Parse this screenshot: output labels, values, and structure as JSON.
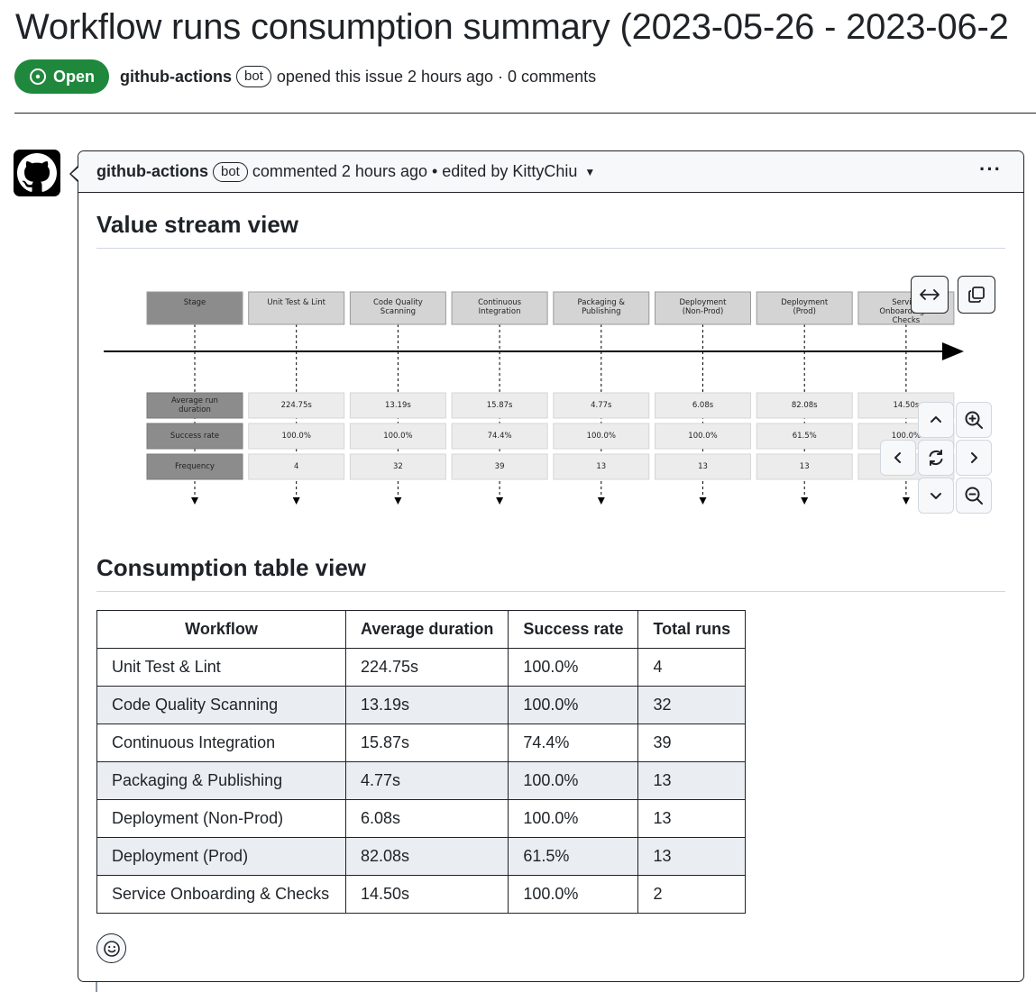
{
  "issue": {
    "title": "Workflow runs consumption summary (2023-05-26 - 2023-06-2",
    "state": "Open",
    "author": "github-actions",
    "bot_label": "bot",
    "meta": "opened this issue 2 hours ago · 0 comments"
  },
  "comment": {
    "author": "github-actions",
    "bot_label": "bot",
    "meta": "commented 2 hours ago • edited by KittyChiu",
    "menu_icon": "kebab-horizontal-icon"
  },
  "sections": {
    "value_stream": "Value stream view",
    "consumption": "Consumption table view"
  },
  "value_stream": {
    "header_label": "Stage",
    "row_labels": [
      "Average run duration",
      "Success rate",
      "Frequency"
    ],
    "stages": [
      {
        "name": "Unit Test & Lint",
        "duration": "224.75s",
        "success": "100.0%",
        "frequency": "4"
      },
      {
        "name": "Code Quality Scanning",
        "duration": "13.19s",
        "success": "100.0%",
        "frequency": "32"
      },
      {
        "name": "Continuous Integration",
        "duration": "15.87s",
        "success": "74.4%",
        "frequency": "39"
      },
      {
        "name": "Packaging & Publishing",
        "duration": "4.77s",
        "success": "100.0%",
        "frequency": "13"
      },
      {
        "name": "Deployment (Non-Prod)",
        "duration": "6.08s",
        "success": "100.0%",
        "frequency": "13"
      },
      {
        "name": "Deployment (Prod)",
        "duration": "82.08s",
        "success": "61.5%",
        "frequency": "13"
      },
      {
        "name": "Service Onboarding & Checks",
        "duration": "14.50s",
        "success": "100.0%",
        "frequency": ""
      }
    ]
  },
  "table": {
    "headers": [
      "Workflow",
      "Average duration",
      "Success rate",
      "Total runs"
    ],
    "rows": [
      [
        "Unit Test & Lint",
        "224.75s",
        "100.0%",
        "4"
      ],
      [
        "Code Quality Scanning",
        "13.19s",
        "100.0%",
        "32"
      ],
      [
        "Continuous Integration",
        "15.87s",
        "74.4%",
        "39"
      ],
      [
        "Packaging & Publishing",
        "4.77s",
        "100.0%",
        "13"
      ],
      [
        "Deployment (Non-Prod)",
        "6.08s",
        "100.0%",
        "13"
      ],
      [
        "Deployment (Prod)",
        "82.08s",
        "61.5%",
        "13"
      ],
      [
        "Service Onboarding & Checks",
        "14.50s",
        "100.0%",
        "2"
      ]
    ]
  },
  "colors": {
    "open_green": "#1f883d",
    "header_bg": "#f6f8fa",
    "alt_row": "#eaeef2",
    "stage_header_dark": "#8c8c8c",
    "stage_header_light": "#d4d4d4",
    "metric_cell": "#ececec"
  }
}
